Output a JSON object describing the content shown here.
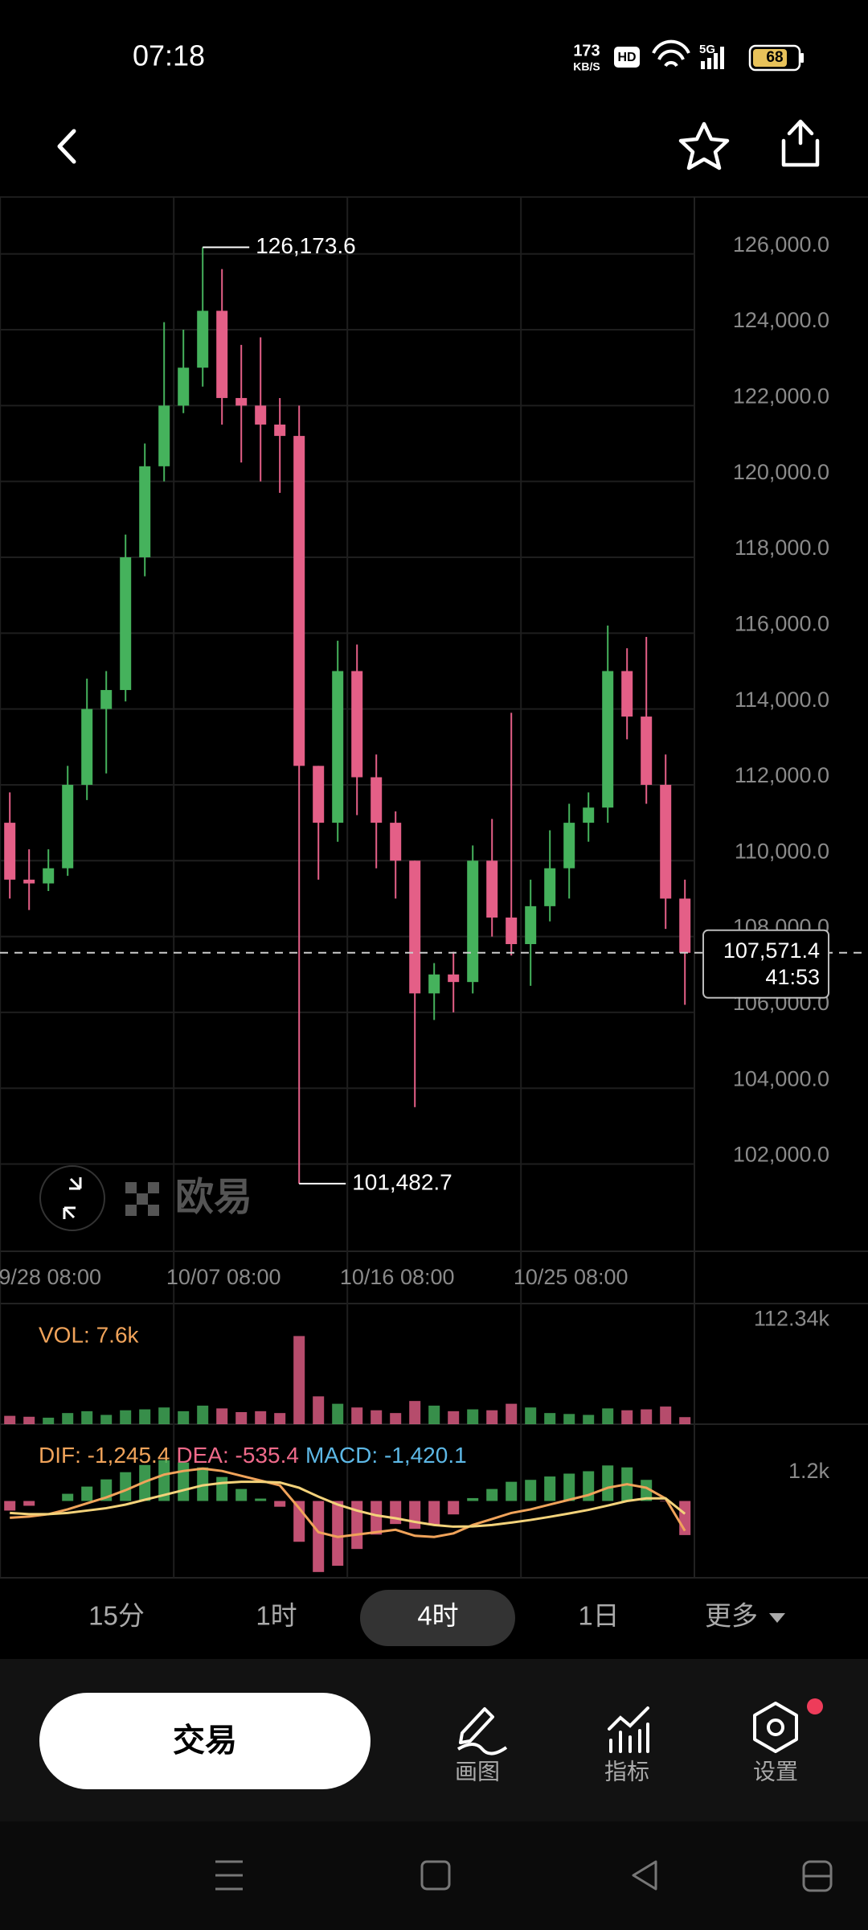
{
  "status_bar": {
    "time": "07:18",
    "speed": "173",
    "speed_unit": "KB/S",
    "hd": "HD",
    "network": "5G",
    "battery": "68"
  },
  "watermark": "欧易",
  "chart_data": {
    "type": "candlestick",
    "ylim": [
      99700,
      127500
    ],
    "yticks": [
      {
        "value": 126000,
        "label": "126,000.0"
      },
      {
        "value": 124000,
        "label": "124,000.0"
      },
      {
        "value": 122000,
        "label": "122,000.0"
      },
      {
        "value": 120000,
        "label": "120,000.0"
      },
      {
        "value": 118000,
        "label": "118,000.0"
      },
      {
        "value": 116000,
        "label": "116,000.0"
      },
      {
        "value": 114000,
        "label": "114,000.0"
      },
      {
        "value": 112000,
        "label": "112,000.0"
      },
      {
        "value": 110000,
        "label": "110,000.0"
      },
      {
        "value": 108000,
        "label": "108,000.0"
      },
      {
        "value": 106000,
        "label": "106,000.0"
      },
      {
        "value": 104000,
        "label": "104,000.0"
      },
      {
        "value": 102000,
        "label": "102,000.0"
      }
    ],
    "xticks": [
      {
        "value": -0.5,
        "label": "9/28 08:00"
      },
      {
        "value": 8.5,
        "label": "10/07 08:00"
      },
      {
        "value": 17.5,
        "label": "10/16 08:00"
      },
      {
        "value": 26.5,
        "label": "10/25 08:00"
      }
    ],
    "grid": true,
    "up_color": "#45b25c",
    "down_color": "#e45f87",
    "candles": [
      {
        "open": 111000,
        "high": 111800,
        "low": 109000,
        "close": 109500
      },
      {
        "open": 109500,
        "high": 110300,
        "low": 108700,
        "close": 109400
      },
      {
        "open": 109400,
        "high": 110300,
        "low": 109200,
        "close": 109800
      },
      {
        "open": 109800,
        "high": 112500,
        "low": 109600,
        "close": 112000
      },
      {
        "open": 112000,
        "high": 114800,
        "low": 111600,
        "close": 114000
      },
      {
        "open": 114000,
        "high": 115000,
        "low": 112300,
        "close": 114500
      },
      {
        "open": 114500,
        "high": 118600,
        "low": 114200,
        "close": 118000
      },
      {
        "open": 118000,
        "high": 121000,
        "low": 117500,
        "close": 120400
      },
      {
        "open": 120400,
        "high": 124200,
        "low": 120000,
        "close": 122000
      },
      {
        "open": 122000,
        "high": 124000,
        "low": 121800,
        "close": 123000
      },
      {
        "open": 123000,
        "high": 126173.6,
        "low": 122500,
        "close": 124500
      },
      {
        "open": 124500,
        "high": 125600,
        "low": 121500,
        "close": 122200
      },
      {
        "open": 122200,
        "high": 123600,
        "low": 120500,
        "close": 122000
      },
      {
        "open": 122000,
        "high": 123800,
        "low": 120000,
        "close": 121500
      },
      {
        "open": 121500,
        "high": 122200,
        "low": 119700,
        "close": 121200
      },
      {
        "open": 121200,
        "high": 122000,
        "low": 101482.7,
        "close": 112500
      },
      {
        "open": 112500,
        "high": 112500,
        "low": 109500,
        "close": 111000
      },
      {
        "open": 111000,
        "high": 115800,
        "low": 110500,
        "close": 115000
      },
      {
        "open": 115000,
        "high": 115700,
        "low": 111200,
        "close": 112200
      },
      {
        "open": 112200,
        "high": 112800,
        "low": 109800,
        "close": 111000
      },
      {
        "open": 111000,
        "high": 111300,
        "low": 109000,
        "close": 110000
      },
      {
        "open": 110000,
        "high": 110000,
        "low": 103500,
        "close": 106500
      },
      {
        "open": 106500,
        "high": 107300,
        "low": 105800,
        "close": 107000
      },
      {
        "open": 107000,
        "high": 107600,
        "low": 106000,
        "close": 106800
      },
      {
        "open": 106800,
        "high": 110400,
        "low": 106500,
        "close": 110000
      },
      {
        "open": 110000,
        "high": 111100,
        "low": 108000,
        "close": 108500
      },
      {
        "open": 108500,
        "high": 113900,
        "low": 107500,
        "close": 107800
      },
      {
        "open": 107800,
        "high": 109500,
        "low": 106700,
        "close": 108800
      },
      {
        "open": 108800,
        "high": 110800,
        "low": 108400,
        "close": 109800
      },
      {
        "open": 109800,
        "high": 111500,
        "low": 109000,
        "close": 111000
      },
      {
        "open": 111000,
        "high": 111800,
        "low": 110500,
        "close": 111400
      },
      {
        "open": 111400,
        "high": 116200,
        "low": 111000,
        "close": 115000
      },
      {
        "open": 115000,
        "high": 115600,
        "low": 113200,
        "close": 113800
      },
      {
        "open": 113800,
        "high": 115900,
        "low": 111500,
        "close": 112000
      },
      {
        "open": 112000,
        "high": 112800,
        "low": 108200,
        "close": 109000
      },
      {
        "open": 109000,
        "high": 109500,
        "low": 106200,
        "close": 107571.4
      }
    ],
    "high_label": "126,173.6",
    "low_label": "101,482.7",
    "last_price": {
      "value": 107571.4,
      "label": "107,571.4",
      "countdown": "41:53"
    },
    "volume": {
      "title": "VOL: 7.6k",
      "ylim": [
        0,
        130000
      ],
      "yticks": [
        {
          "value": 112340,
          "label": "112.34k"
        }
      ],
      "values": [
        9000,
        8000,
        7000,
        12000,
        14000,
        10000,
        15000,
        16000,
        18000,
        14000,
        20000,
        17000,
        13000,
        14000,
        12000,
        95000,
        30000,
        22000,
        18000,
        15000,
        12000,
        25000,
        20000,
        14000,
        16000,
        15000,
        22000,
        18000,
        12000,
        11000,
        10000,
        17000,
        15000,
        16000,
        19000,
        7600
      ]
    },
    "macd": {
      "ylim": [
        -3200,
        3200
      ],
      "yticks": [
        {
          "value": 1200,
          "label": "1.2k"
        }
      ],
      "series": [
        {
          "name": "DIF: -1,245.4",
          "color": "#f0a35a",
          "values": [
            -700,
            -650,
            -550,
            -350,
            -100,
            150,
            450,
            800,
            1100,
            1250,
            1350,
            1250,
            1050,
            850,
            650,
            -300,
            -1300,
            -1500,
            -1400,
            -1300,
            -1200,
            -1450,
            -1500,
            -1350,
            -1000,
            -750,
            -500,
            -350,
            -150,
            50,
            250,
            550,
            700,
            550,
            100,
            -1245.4
          ]
        },
        {
          "name": "DEA: -535.4",
          "color": "#ef6a8a",
          "values": [
            -500,
            -550,
            -550,
            -500,
            -400,
            -300,
            -150,
            50,
            250,
            450,
            650,
            750,
            800,
            800,
            770,
            550,
            180,
            -150,
            -400,
            -600,
            -720,
            -870,
            -1000,
            -1070,
            -1060,
            -1000,
            -900,
            -790,
            -660,
            -520,
            -370,
            -190,
            0,
            110,
            110,
            -535.4
          ]
        },
        {
          "name": "MACD: -1,420.1",
          "color": "#5db8e6",
          "values": [
            -400,
            -200,
            0,
            300,
            600,
            900,
            1200,
            1500,
            1700,
            1600,
            1400,
            1000,
            500,
            100,
            -240,
            -1700,
            -2960,
            -2700,
            -2000,
            -1400,
            -960,
            -1160,
            -1000,
            -560,
            120,
            500,
            800,
            880,
            1020,
            1140,
            1240,
            1480,
            1400,
            880,
            -20,
            -1420.1
          ]
        }
      ]
    }
  },
  "tabs": [
    "15分",
    "1时",
    "4时",
    "1日",
    "更多"
  ],
  "trade_button": "交易",
  "tools": [
    "画图",
    "指标",
    "设置"
  ]
}
